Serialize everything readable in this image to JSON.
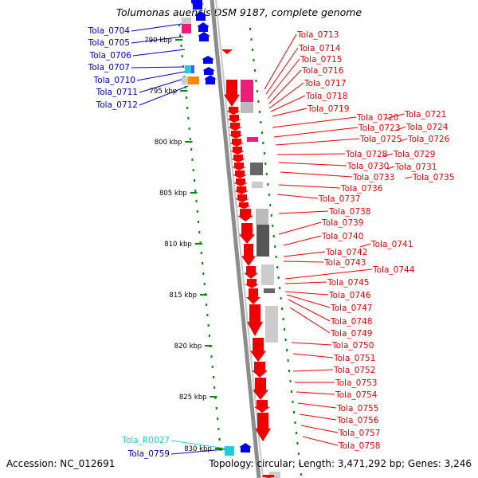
{
  "title": "Tolumonas auensis DSM 9187, complete genome",
  "footer": {
    "accession": "Accession: NC_012691",
    "stats": "Topology: circular; Length: 3,471,292 bp; Genes: 3,246"
  },
  "colors": {
    "forward_label": "#0000cc",
    "reverse_label": "#ee0000",
    "rna_label": "#22ccdd",
    "ruler_dash": "#008800",
    "backbone": "#888888"
  },
  "ruler": {
    "unit": "kbp",
    "ticks": [
      {
        "label": "790 kbp"
      },
      {
        "label": "795 kbp"
      },
      {
        "label": "800 kbp"
      },
      {
        "label": "805 kbp"
      },
      {
        "label": "810 kbp"
      },
      {
        "label": "815 kbp"
      },
      {
        "label": "820 kbp"
      },
      {
        "label": "825 kbp"
      },
      {
        "label": "830 kbp"
      }
    ]
  },
  "left_genes": [
    {
      "name": "Tola_0704",
      "strand": "forward"
    },
    {
      "name": "Tola_0705",
      "strand": "forward"
    },
    {
      "name": "Tola_0706",
      "strand": "forward"
    },
    {
      "name": "Tola_0707",
      "strand": "forward"
    },
    {
      "name": "Tola_0710",
      "strand": "forward"
    },
    {
      "name": "Tola_0711",
      "strand": "forward"
    },
    {
      "name": "Tola_0712",
      "strand": "forward"
    },
    {
      "name": "Tola_R0027",
      "strand": "rna"
    },
    {
      "name": "Tola_0759",
      "strand": "forward"
    }
  ],
  "right_genes": [
    {
      "name": "Tola_0713"
    },
    {
      "name": "Tola_0714"
    },
    {
      "name": "Tola_0715"
    },
    {
      "name": "Tola_0716"
    },
    {
      "name": "Tola_0717"
    },
    {
      "name": "Tola_0718"
    },
    {
      "name": "Tola_0719"
    },
    {
      "name": "Tola_0720"
    },
    {
      "name": "Tola_0721"
    },
    {
      "name": "Tola_0723"
    },
    {
      "name": "Tola_0724"
    },
    {
      "name": "Tola_0725"
    },
    {
      "name": "Tola_0726"
    },
    {
      "name": "Tola_0728"
    },
    {
      "name": "Tola_0729"
    },
    {
      "name": "Tola_0730"
    },
    {
      "name": "Tola_0731"
    },
    {
      "name": "Tola_0733"
    },
    {
      "name": "Tola_0735"
    },
    {
      "name": "Tola_0736"
    },
    {
      "name": "Tola_0737"
    },
    {
      "name": "Tola_0738"
    },
    {
      "name": "Tola_0739"
    },
    {
      "name": "Tola_0740"
    },
    {
      "name": "Tola_0741"
    },
    {
      "name": "Tola_0742"
    },
    {
      "name": "Tola_0743"
    },
    {
      "name": "Tola_0744"
    },
    {
      "name": "Tola_0745"
    },
    {
      "name": "Tola_0746"
    },
    {
      "name": "Tola_0747"
    },
    {
      "name": "Tola_0748"
    },
    {
      "name": "Tola_0749"
    },
    {
      "name": "Tola_0750"
    },
    {
      "name": "Tola_0751"
    },
    {
      "name": "Tola_0752"
    },
    {
      "name": "Tola_0753"
    },
    {
      "name": "Tola_0754"
    },
    {
      "name": "Tola_0755"
    },
    {
      "name": "Tola_0756"
    },
    {
      "name": "Tola_0757"
    },
    {
      "name": "Tola_0758"
    }
  ]
}
